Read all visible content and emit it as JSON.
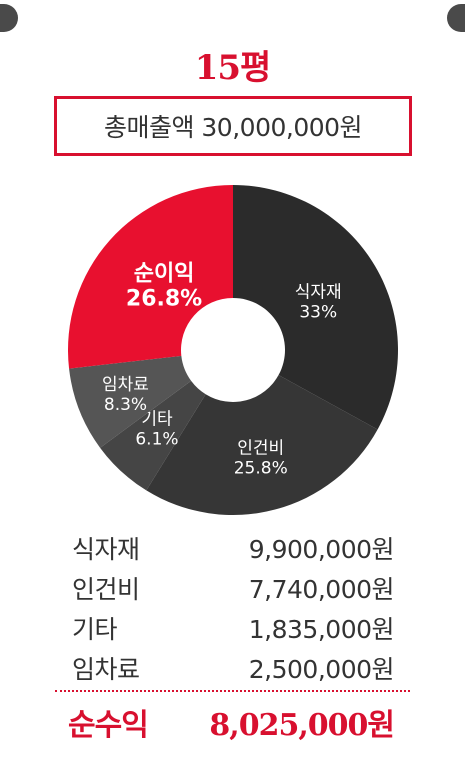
{
  "page": {
    "title": "15평",
    "total_label": "총매출액 30,000,000원"
  },
  "chart_data": {
    "type": "pie",
    "style": "donut",
    "slices": [
      {
        "label": "식자재",
        "percent_label": "33%",
        "value": 33,
        "color": "#2b2b2b"
      },
      {
        "label": "인건비",
        "percent_label": "25.8%",
        "value": 25.8,
        "color": "#363636"
      },
      {
        "label": "기타",
        "percent_label": "6.1%",
        "value": 6.1,
        "color": "#454545"
      },
      {
        "label": "임차료",
        "percent_label": "8.3%",
        "value": 8.3,
        "color": "#555555"
      },
      {
        "label": "순이익",
        "percent_label": "26.8%",
        "value": 26.8,
        "color": "#e8102f"
      }
    ],
    "start": "top",
    "direction": "clockwise"
  },
  "expenses": [
    {
      "label": "식자재",
      "amount": "9,900,000원"
    },
    {
      "label": "인건비",
      "amount": "7,740,000원"
    },
    {
      "label": "기타",
      "amount": "1,835,000원"
    },
    {
      "label": "임차료",
      "amount": "2,500,000원"
    }
  ],
  "profit": {
    "label": "순수익",
    "amount": "8,025,000원"
  },
  "colors": {
    "accent": "#d8102f",
    "text": "#333333"
  }
}
